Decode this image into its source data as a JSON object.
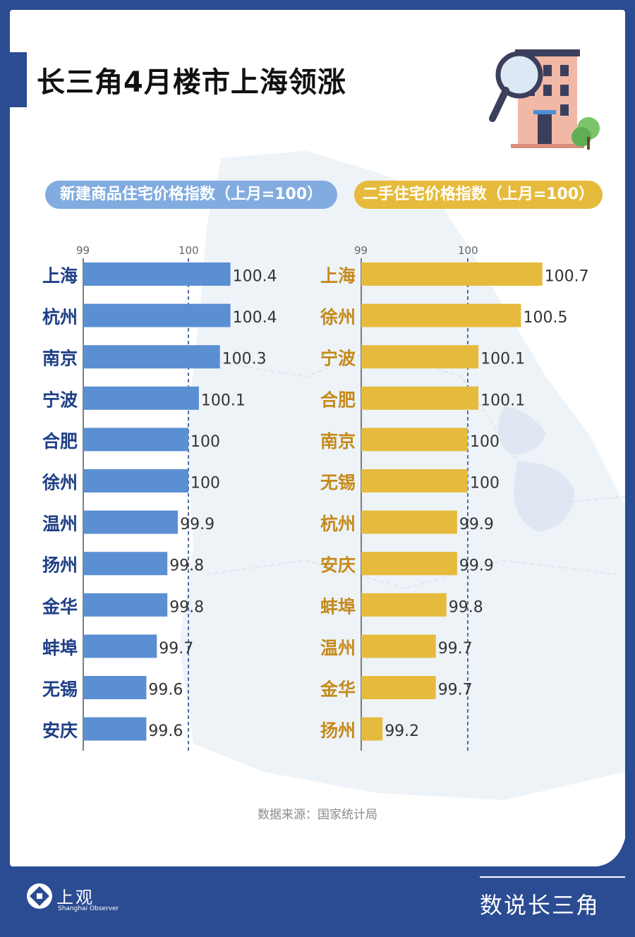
{
  "header": {
    "title": "长三角4月楼市上海领涨"
  },
  "source": "数据来源：国家统计局",
  "footer": {
    "brand": "上观",
    "brand_sub": "Shanghai Observer",
    "column": "数说长三角"
  },
  "colors": {
    "new_bar": "#5a8fd2",
    "new_label": "#1f3f86",
    "resale_bar": "#e6bb3d",
    "resale_label": "#c58a1a",
    "value_text": "#333333"
  },
  "chart_data": [
    {
      "type": "bar",
      "orientation": "horizontal",
      "title": "新建商品住宅价格指数（上月=100）",
      "categories": [
        "上海",
        "杭州",
        "南京",
        "宁波",
        "合肥",
        "徐州",
        "温州",
        "扬州",
        "金华",
        "蚌埠",
        "无锡",
        "安庆"
      ],
      "values": [
        100.4,
        100.4,
        100.3,
        100.1,
        100,
        100,
        99.9,
        99.8,
        99.8,
        99.7,
        99.6,
        99.6
      ],
      "value_labels": [
        "100.4",
        "100.4",
        "100.3",
        "100.1",
        "100",
        "100",
        "99.9",
        "99.8",
        "99.8",
        "99.7",
        "99.6",
        "99.6"
      ],
      "xlim": [
        99,
        100.4
      ],
      "ticks": [
        "99",
        "100"
      ],
      "reference_line": 100
    },
    {
      "type": "bar",
      "orientation": "horizontal",
      "title": "二手住宅价格指数（上月=100）",
      "categories": [
        "上海",
        "徐州",
        "宁波",
        "合肥",
        "南京",
        "无锡",
        "杭州",
        "安庆",
        "蚌埠",
        "温州",
        "金华",
        "扬州"
      ],
      "values": [
        100.7,
        100.5,
        100.1,
        100.1,
        100,
        100,
        99.9,
        99.9,
        99.8,
        99.7,
        99.7,
        99.2
      ],
      "value_labels": [
        "100.7",
        "100.5",
        "100.1",
        "100.1",
        "100",
        "100",
        "99.9",
        "99.9",
        "99.8",
        "99.7",
        "99.7",
        "99.2"
      ],
      "xlim": [
        99,
        100.7
      ],
      "ticks": [
        "99",
        "100"
      ],
      "reference_line": 100
    }
  ]
}
